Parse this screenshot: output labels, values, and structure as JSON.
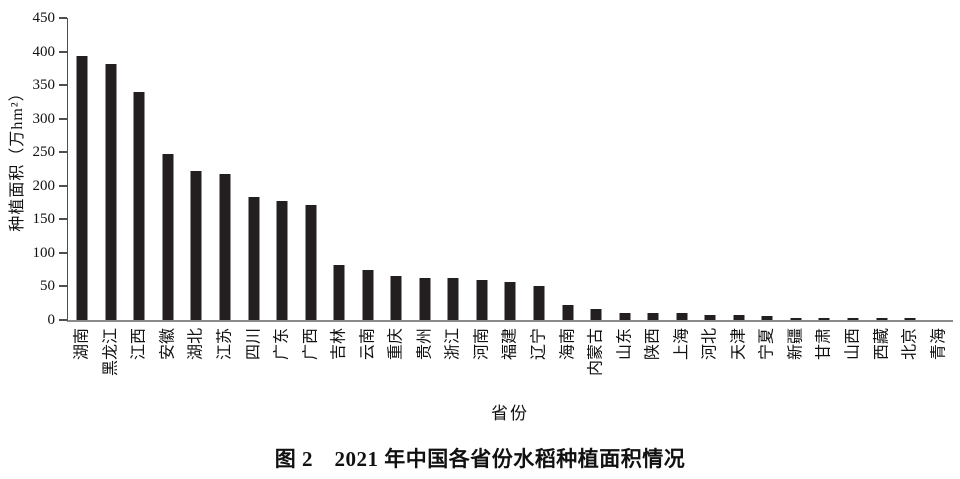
{
  "figure": {
    "caption": "图 2　2021 年中国各省份水稻种植面积情况"
  },
  "chart_data": {
    "type": "bar",
    "title": "图 2 2021 年中国各省份水稻种植面积情况",
    "xlabel": "省份",
    "ylabel": "种植面积（万hm²）",
    "ylim": [
      0,
      450
    ],
    "yticks": [
      0,
      50,
      100,
      150,
      200,
      250,
      300,
      350,
      400,
      450
    ],
    "grid": false,
    "legend": "none",
    "bar_color": "#231f20",
    "categories": [
      "湖南",
      "黑龙江",
      "江西",
      "安徽",
      "湖北",
      "江苏",
      "四川",
      "广东",
      "广西",
      "吉林",
      "云南",
      "重庆",
      "贵州",
      "浙江",
      "河南",
      "福建",
      "辽宁",
      "海南",
      "内蒙古",
      "山东",
      "陕西",
      "上海",
      "河北",
      "天津",
      "宁夏",
      "新疆",
      "甘肃",
      "山西",
      "西藏",
      "北京",
      "青海"
    ],
    "values": [
      394,
      381,
      340,
      247,
      222,
      218,
      184,
      178,
      172,
      82,
      74,
      65,
      63,
      62,
      59,
      57,
      50,
      22,
      16,
      11,
      10.5,
      10,
      8,
      7,
      6,
      3.5,
      1.5,
      1.5,
      1.5,
      1.5,
      0.2
    ]
  }
}
